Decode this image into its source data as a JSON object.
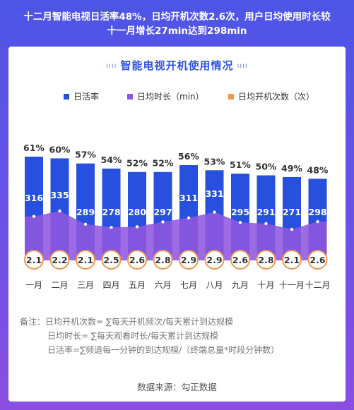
{
  "headline": {
    "line1": "十二月智能电视日活率48%，日均开机次数2.6次，用户日均使用时长较",
    "line2": "十一月增长27min达到298min"
  },
  "colors": {
    "bar": "#2650dd",
    "area": "#8f56df",
    "circle_border": "#f0974e",
    "title": "#2f55e0"
  },
  "chart_data": {
    "type": "bar",
    "title": "智能电视开机使用情况",
    "categories": [
      "一月",
      "二月",
      "三月",
      "四月",
      "五月",
      "六月",
      "七月",
      "八月",
      "九月",
      "十月",
      "十一月",
      "十二月"
    ],
    "series": [
      {
        "name": "日活率",
        "type": "bar",
        "unit": "%",
        "values": [
          61,
          60,
          57,
          54,
          52,
          52,
          56,
          53,
          51,
          50,
          49,
          48
        ]
      },
      {
        "name": "日均时长（min）",
        "type": "area",
        "values": [
          316,
          335,
          289,
          278,
          280,
          297,
          311,
          331,
          295,
          291,
          271,
          298
        ]
      },
      {
        "name": "日均开机次数（次）",
        "type": "marker",
        "values": [
          2.1,
          2.2,
          2.1,
          2.5,
          2.6,
          2.8,
          2.9,
          2.9,
          2.6,
          2.8,
          2.1,
          2.6
        ]
      }
    ],
    "legend": {
      "position": "top"
    },
    "xlabel": "",
    "ylabel": ""
  },
  "notes": {
    "line1": "备注：日均开机次数= ∑每天开机频次/每天累计到达规模",
    "line2": "日均时长= ∑每天观看时长/每天累计到达规模",
    "line3": "日活率=∑频道每一分钟的到达规模/（终端总量*时段分钟数）"
  },
  "source": "数据来源：勾正数据"
}
